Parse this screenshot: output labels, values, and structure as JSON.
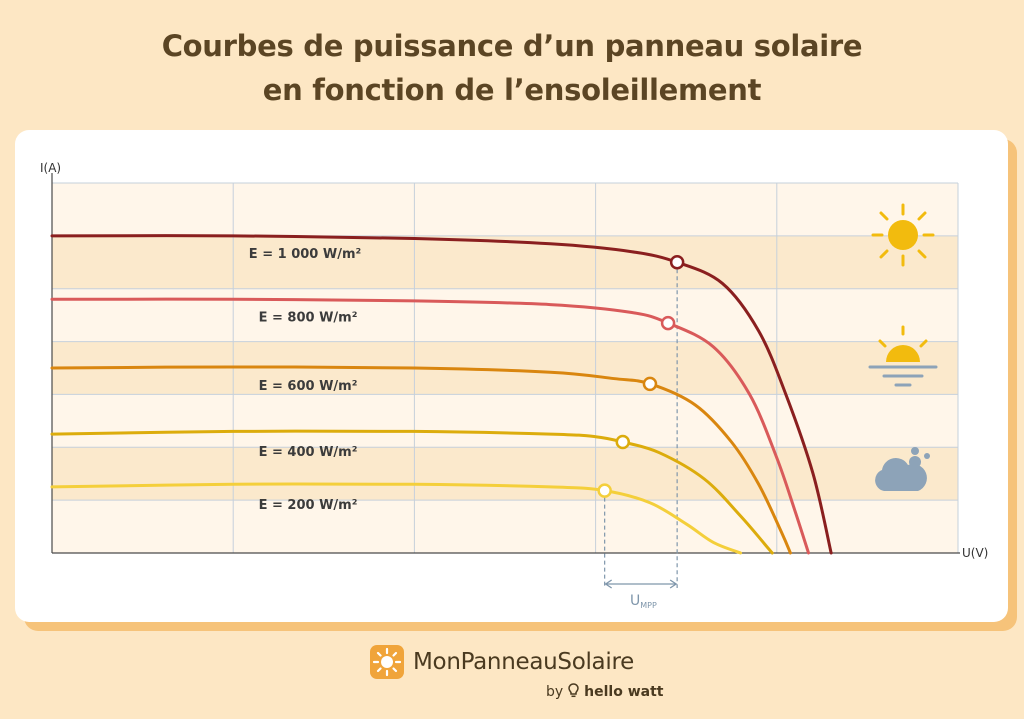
{
  "title": {
    "line1": "Courbes de puissance d’un panneau solaire",
    "line2": "en fonction de l’ensoleillement"
  },
  "brand": {
    "name": "MonPanneauSolaire",
    "by": "by",
    "partner": "hello watt"
  },
  "icons": [
    "sun-icon",
    "sunset-icon",
    "cloud-icon"
  ],
  "chart_data": {
    "type": "line",
    "xlabel": "U(V)",
    "ylabel": "I(A)",
    "xlim": [
      0,
      10
    ],
    "ylim": [
      0,
      7
    ],
    "grid": true,
    "annotation": {
      "label": "U",
      "subscript": "MPP",
      "range": [
        6.1,
        6.9
      ]
    },
    "series": [
      {
        "name": "E = 1 000 W/m²",
        "color": "#8a1f1f",
        "points": [
          [
            0,
            6.0
          ],
          [
            2,
            6.0
          ],
          [
            4,
            5.95
          ],
          [
            5.5,
            5.85
          ],
          [
            6.4,
            5.7
          ],
          [
            6.9,
            5.5
          ],
          [
            7.4,
            5.1
          ],
          [
            7.8,
            4.2
          ],
          [
            8.1,
            3.0
          ],
          [
            8.4,
            1.5
          ],
          [
            8.6,
            0
          ]
        ],
        "mpp": [
          6.9,
          5.5
        ]
      },
      {
        "name": "E = 800 W/m²",
        "color": "#d95a5a",
        "points": [
          [
            0,
            4.8
          ],
          [
            2,
            4.8
          ],
          [
            4,
            4.77
          ],
          [
            5.5,
            4.7
          ],
          [
            6.4,
            4.55
          ],
          [
            6.8,
            4.35
          ],
          [
            7.3,
            3.9
          ],
          [
            7.7,
            3.0
          ],
          [
            8.0,
            1.8
          ],
          [
            8.2,
            0.8
          ],
          [
            8.35,
            0
          ]
        ],
        "mpp": [
          6.8,
          4.35
        ]
      },
      {
        "name": "E = 600 W/m²",
        "color": "#d9860f",
        "points": [
          [
            0,
            3.5
          ],
          [
            2,
            3.52
          ],
          [
            4,
            3.5
          ],
          [
            5.5,
            3.42
          ],
          [
            6.2,
            3.3
          ],
          [
            6.6,
            3.2
          ],
          [
            7.1,
            2.8
          ],
          [
            7.5,
            2.1
          ],
          [
            7.8,
            1.3
          ],
          [
            8.05,
            0.4
          ],
          [
            8.15,
            0
          ]
        ],
        "mpp": [
          6.6,
          3.2
        ]
      },
      {
        "name": "E = 400 W/m²",
        "color": "#dcac0c",
        "points": [
          [
            0,
            2.25
          ],
          [
            2,
            2.3
          ],
          [
            4,
            2.3
          ],
          [
            5.5,
            2.25
          ],
          [
            6.0,
            2.2
          ],
          [
            6.3,
            2.1
          ],
          [
            6.7,
            1.9
          ],
          [
            7.2,
            1.4
          ],
          [
            7.6,
            0.7
          ],
          [
            7.9,
            0.1
          ],
          [
            7.95,
            0
          ]
        ],
        "mpp": [
          6.3,
          2.1
        ]
      },
      {
        "name": "E = 200 W/m²",
        "color": "#f4cf3b",
        "points": [
          [
            0,
            1.25
          ],
          [
            2,
            1.3
          ],
          [
            4,
            1.3
          ],
          [
            5.5,
            1.25
          ],
          [
            6.1,
            1.18
          ],
          [
            6.6,
            0.95
          ],
          [
            7.0,
            0.55
          ],
          [
            7.3,
            0.2
          ],
          [
            7.6,
            0
          ]
        ],
        "mpp": [
          6.1,
          1.18
        ]
      }
    ]
  }
}
